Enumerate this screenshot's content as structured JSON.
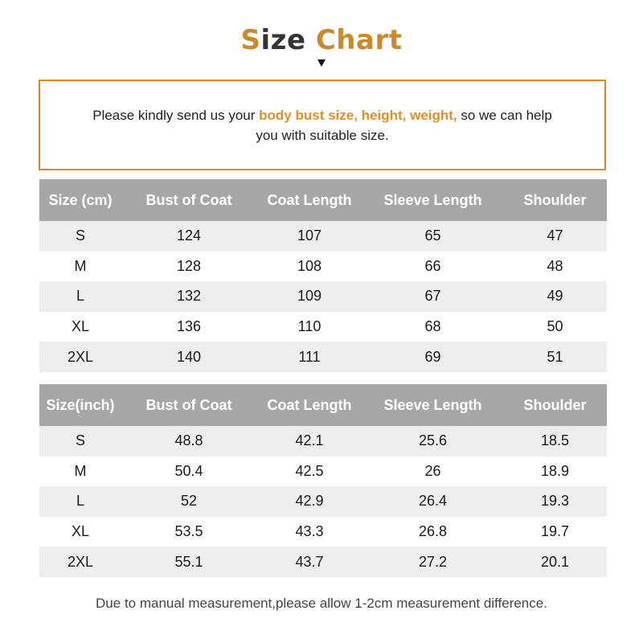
{
  "title": {
    "part1": "S",
    "part2": "ize",
    "part3": "Chart"
  },
  "notice": {
    "before": "Please kindly send us your ",
    "highlight": "body bust size, height, weight,",
    "after": " so we can help you with suitable size."
  },
  "colors": {
    "accent": "#d08a30",
    "header_bg": "#a8a7a7",
    "row_alt": "#eeeeee"
  },
  "table_cm": {
    "headers": [
      "Size (cm)",
      "Bust of Coat",
      "Coat Length",
      "Sleeve Length",
      "Shoulder"
    ],
    "rows": [
      [
        "S",
        "124",
        "107",
        "65",
        "47"
      ],
      [
        "M",
        "128",
        "108",
        "66",
        "48"
      ],
      [
        "L",
        "132",
        "109",
        "67",
        "49"
      ],
      [
        "XL",
        "136",
        "110",
        "68",
        "50"
      ],
      [
        "2XL",
        "140",
        "111",
        "69",
        "51"
      ]
    ]
  },
  "table_inch": {
    "headers": [
      "Size(inch)",
      "Bust of Coat",
      "Coat Length",
      "Sleeve Length",
      "Shoulder"
    ],
    "rows": [
      [
        "S",
        "48.8",
        "42.1",
        "25.6",
        "18.5"
      ],
      [
        "M",
        "50.4",
        "42.5",
        "26",
        "18.9"
      ],
      [
        "L",
        "52",
        "42.9",
        "26.4",
        "19.3"
      ],
      [
        "XL",
        "53.5",
        "43.3",
        "26.8",
        "19.7"
      ],
      [
        "2XL",
        "55.1",
        "43.7",
        "27.2",
        "20.1"
      ]
    ]
  },
  "footer": "Due to manual measurement,please allow 1-2cm measurement difference."
}
